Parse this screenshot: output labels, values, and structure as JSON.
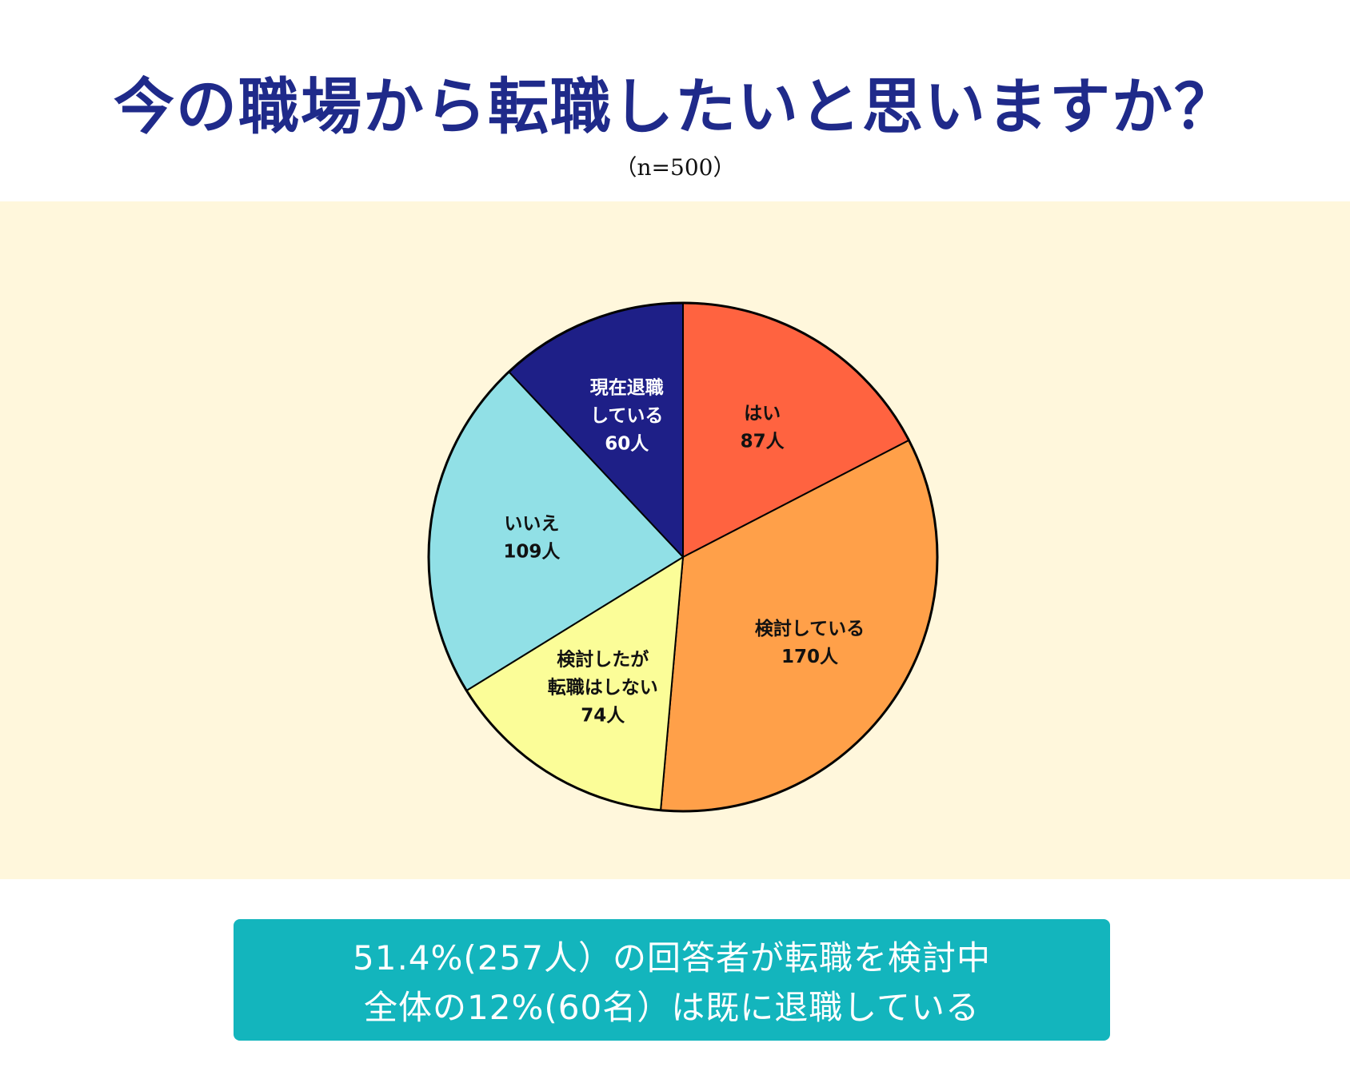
{
  "header": {
    "title": "今の職場から転職したいと思いますか？",
    "subtitle": "（n=500）"
  },
  "chart_data": {
    "type": "pie",
    "title": "今の職場から転職したいと思いますか？",
    "total": 500,
    "slices": [
      {
        "label_lines": [
          "はい",
          "87人"
        ],
        "value": 87,
        "color": "#ff6340",
        "text_color": "#111111"
      },
      {
        "label_lines": [
          "検討している",
          "170人"
        ],
        "value": 170,
        "color": "#ffa049",
        "text_color": "#111111"
      },
      {
        "label_lines": [
          "検討したが",
          "転職はしない",
          "74人"
        ],
        "value": 74,
        "color": "#fbfd98",
        "text_color": "#111111"
      },
      {
        "label_lines": [
          "いいえ",
          "109人"
        ],
        "value": 109,
        "color": "#91e0e6",
        "text_color": "#111111"
      },
      {
        "label_lines": [
          "現在退職",
          "している",
          "60人"
        ],
        "value": 60,
        "color": "#1e1f87",
        "text_color": "#ffffff"
      }
    ]
  },
  "summary": {
    "line1": "51.4%(257人）の回答者が転職を検討中",
    "line2": "全体の12%(60名）は既に退職している",
    "bg_color": "#13b5bd"
  }
}
